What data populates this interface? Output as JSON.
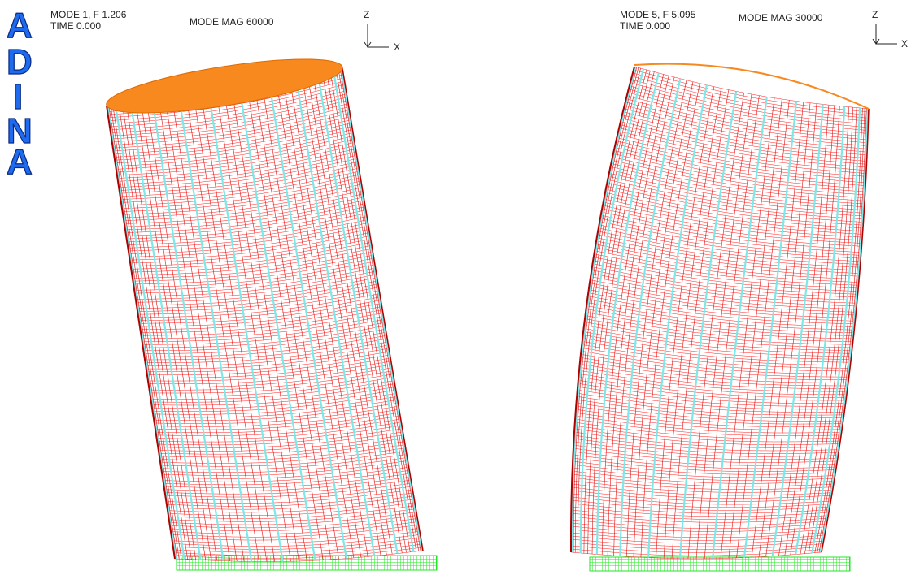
{
  "logo": {
    "letters": [
      "A",
      "D",
      "I",
      "N",
      "A"
    ]
  },
  "panels": [
    {
      "mode_label": "MODE 1, F 1.206",
      "time_label": "TIME 0.000",
      "mag_label": "MODE MAG 60000",
      "axis_z": "Z",
      "axis_x": "X"
    },
    {
      "mode_label": "MODE 5, F 5.095",
      "time_label": "TIME 0.000",
      "mag_label": "MODE MAG 30000",
      "axis_z": "Z",
      "axis_x": "X"
    }
  ]
}
